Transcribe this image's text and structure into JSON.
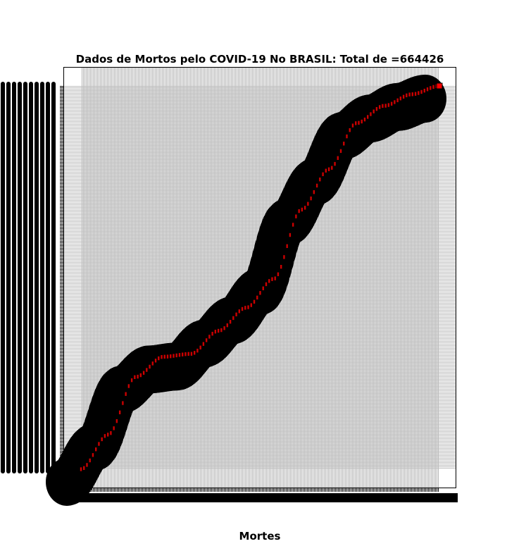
{
  "chart_data": {
    "type": "scatter",
    "title": "Dados de Mortos pelo COVID-19 No BRASIL:  Total de =664426",
    "xlabel": "Mortes",
    "ylabel": "",
    "grid": true,
    "series": [
      {
        "x": [
          1,
          60,
          120,
          180,
          240,
          300,
          360,
          420,
          480,
          540,
          600,
          660,
          720,
          780
        ],
        "y": [
          1,
          60000,
          160000,
          195000,
          200000,
          240000,
          280000,
          330000,
          450000,
          520000,
          600000,
          630000,
          650000,
          664426
        ],
        "color": "#cc0000"
      }
    ],
    "last_point": {
      "x": 780,
      "y": 664426,
      "color": "#ff0000"
    },
    "colors": {
      "grid": "#b0b0b0",
      "marker_edge": "#000000",
      "marker_face": "#cc0000"
    }
  }
}
